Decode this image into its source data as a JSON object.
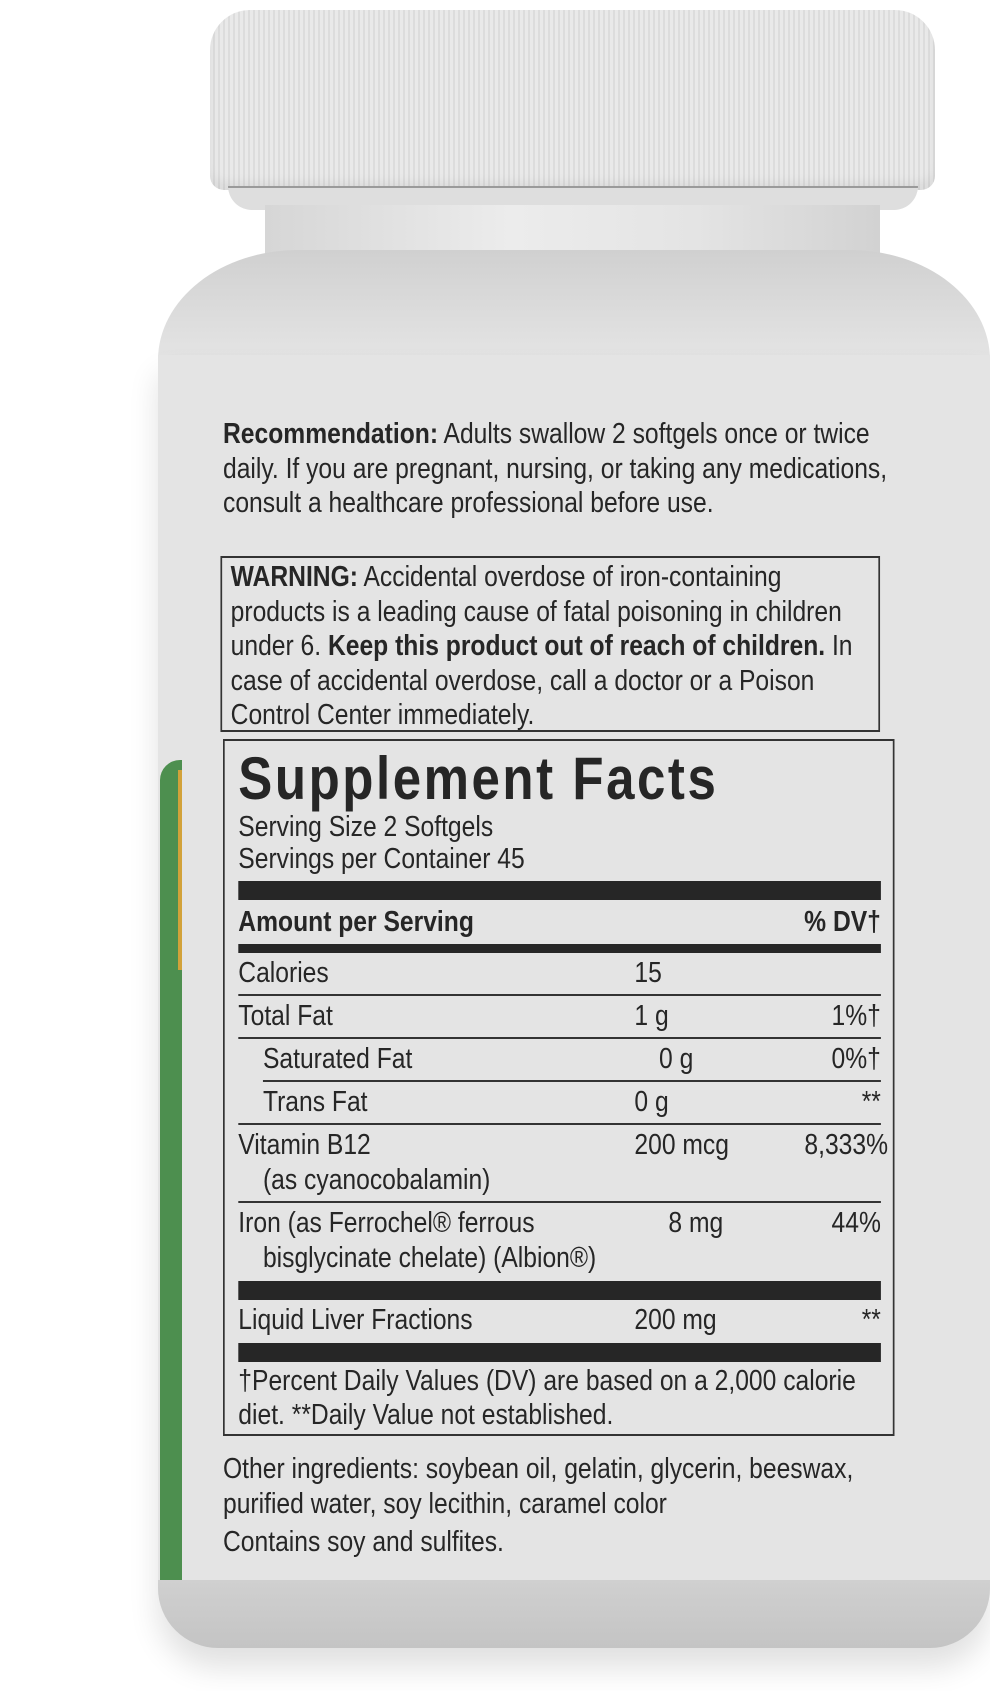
{
  "recommendation": {
    "label": "Recommendation:",
    "text": " Adults swallow 2 softgels once or twice daily. If you are pregnant, nursing, or taking any medications, consult a healthcare professional before use."
  },
  "warning": {
    "label": "WARNING:",
    "text1": " Accidental overdose of iron-containing products is a leading cause of fatal poisoning in children under 6. ",
    "bold": "Keep this product out of reach of children.",
    "text2": " In case of accidental overdose, call a doctor or a Poison Control Center immediately."
  },
  "facts": {
    "title": "Supplement Facts",
    "serving_size": "Serving Size 2 Softgels",
    "servings_per_container": "Servings per Container 45",
    "amount_header": "Amount per Serving",
    "dv_header": "% DV†",
    "rows": [
      {
        "name": "Calories",
        "amount": "15",
        "dv": ""
      },
      {
        "name": "Total Fat",
        "amount": "1 g",
        "dv": "1%†"
      },
      {
        "name": "Saturated Fat",
        "amount": "0 g",
        "dv": "0%†"
      },
      {
        "name": "Trans Fat",
        "amount": "0 g",
        "dv": "**"
      },
      {
        "name": "Vitamin B12",
        "sub": "(as cyanocobalamin)",
        "amount": "200 mcg",
        "dv": "8,333%"
      },
      {
        "name": "Iron (as Ferrochel® ferrous",
        "sub": "bisglycinate chelate) (Albion®)",
        "amount": "8 mg",
        "dv": "44%"
      },
      {
        "name": "Liquid Liver Fractions",
        "amount": "200 mg",
        "dv": "**"
      }
    ],
    "footnote": "†Percent Daily Values (DV) are based on a 2,000 calorie diet. **Daily Value not established."
  },
  "other_ingredients": "Other ingredients: soybean oil, gelatin, glycerin, beeswax, purified water, soy lecithin, caramel color",
  "contains": "Contains soy and sulfites.",
  "colors": {
    "stripe": "#4d8f4f",
    "stripe_accent": "#d2a23a",
    "bottle": "#e4e4e4"
  }
}
